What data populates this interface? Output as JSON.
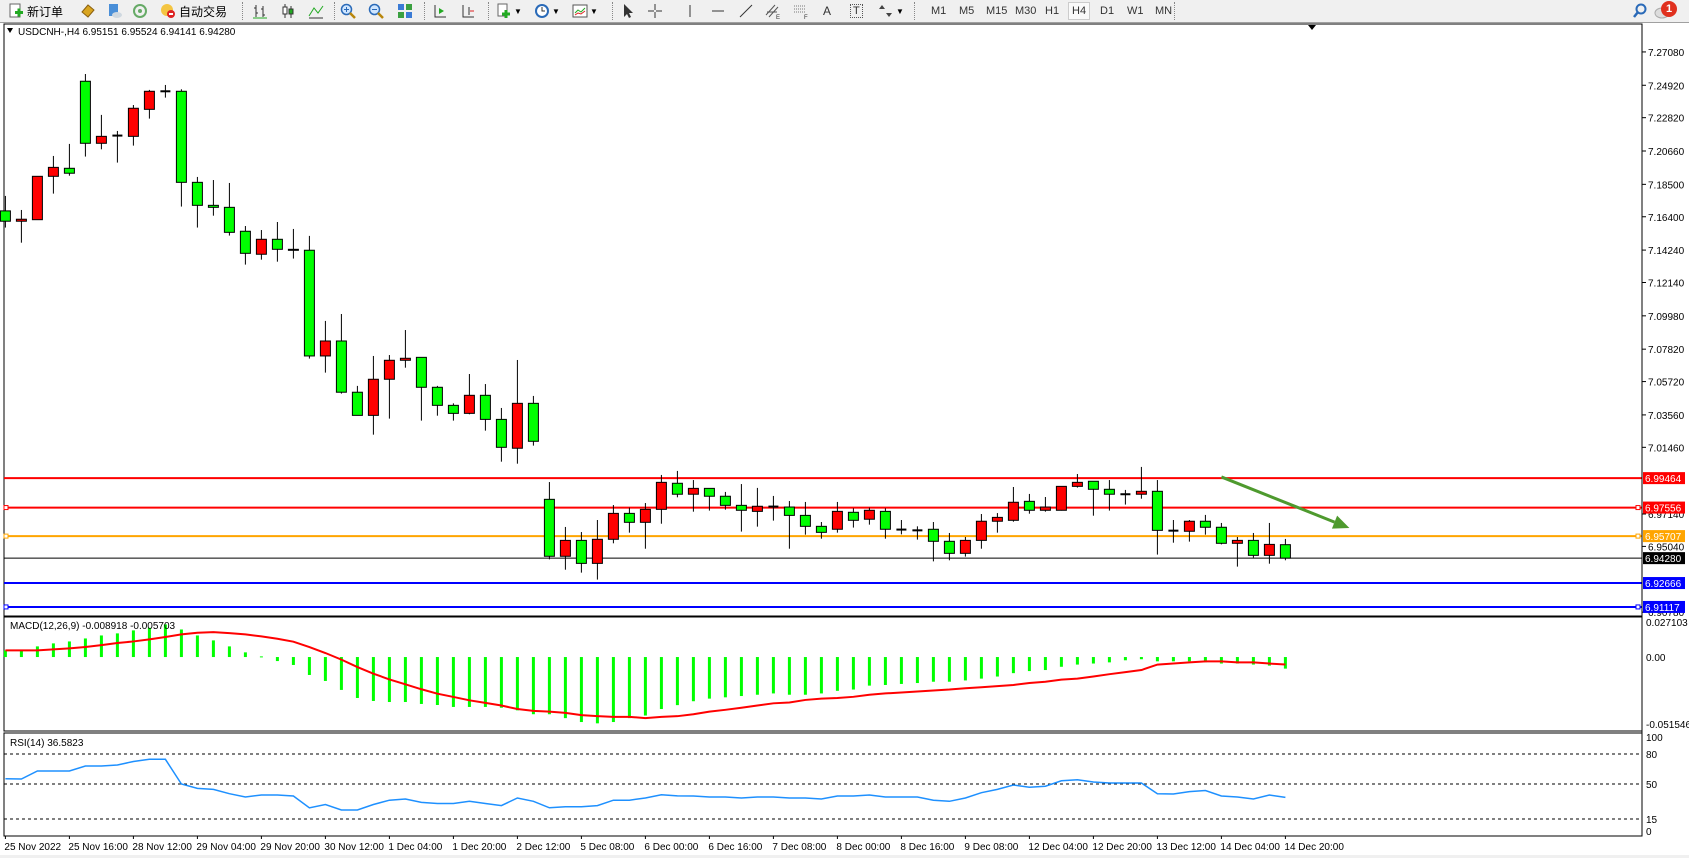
{
  "toolbar": {
    "new_order_label": "新订单",
    "auto_trading_label": "自动交易",
    "timeframes": [
      "M1",
      "M5",
      "M15",
      "M30",
      "H1",
      "H4",
      "D1",
      "W1",
      "MN"
    ],
    "selected_timeframe": "H4",
    "notification_count": "1",
    "text_tool_label": "A",
    "text_label_tool": "T"
  },
  "main_chart": {
    "header": "USDCNH-,H4  6.95151 6.95524 6.94141 6.94280",
    "symbol": "USDCNH-",
    "timeframe": "H4",
    "colors": {
      "bull_candle": "#ff0000",
      "bear_candle": "#00ff00",
      "doji": "#000000",
      "arrow": "#4e9a2e"
    },
    "ylim": [
      6.9053,
      7.2889
    ],
    "y_ticks": [
      "7.27080",
      "7.24920",
      "7.22820",
      "7.20660",
      "7.18500",
      "7.16400",
      "7.14240",
      "7.12140",
      "7.09980",
      "7.07820",
      "7.05720",
      "7.03560",
      "7.01460",
      "6.97140",
      "6.95040",
      "6.90780"
    ],
    "horizontal_lines": [
      {
        "price": "6.99464",
        "color": "#ff0000",
        "handle": false
      },
      {
        "price": "6.97556",
        "color": "#ff0000",
        "handle": true
      },
      {
        "price": "6.95707",
        "color": "#ffa500",
        "handle": true
      },
      {
        "price": "6.92666",
        "color": "#0000ff",
        "handle": false
      },
      {
        "price": "6.91117",
        "color": "#0000ff",
        "handle": true
      }
    ],
    "bid": {
      "price": "6.94280",
      "color": "#000000"
    },
    "arrow": {
      "from": {
        "time": "14 Dec 04:00",
        "price": 6.9954
      },
      "to": {
        "time": "15 Dec 12:00",
        "price": 6.9623
      }
    },
    "ohlc": [
      [
        7.1678,
        7.1775,
        7.157,
        7.1611
      ],
      [
        7.1611,
        7.1684,
        7.1472,
        7.1624
      ],
      [
        7.1621,
        7.1902,
        7.1621,
        7.1902
      ],
      [
        7.1902,
        7.2034,
        7.179,
        7.196
      ],
      [
        7.1954,
        7.2112,
        7.1906,
        7.1922
      ],
      [
        7.2518,
        7.2565,
        7.203,
        7.2116
      ],
      [
        7.2116,
        7.23,
        7.2077,
        7.2161
      ],
      [
        7.2166,
        7.2196,
        7.1991,
        7.2161
      ],
      [
        7.2161,
        7.2364,
        7.2101,
        7.2343
      ],
      [
        7.2336,
        7.2462,
        7.2276,
        7.2453
      ],
      [
        7.2453,
        7.2494,
        7.2412,
        7.2453
      ],
      [
        7.2453,
        7.2466,
        7.1706,
        7.1863
      ],
      [
        7.1863,
        7.1898,
        7.157,
        7.1714
      ],
      [
        7.1714,
        7.1878,
        7.1647,
        7.1701
      ],
      [
        7.1701,
        7.1859,
        7.1518,
        7.1539
      ],
      [
        7.1546,
        7.158,
        7.133,
        7.1403
      ],
      [
        7.1397,
        7.1554,
        7.1362,
        7.1494
      ],
      [
        7.1494,
        7.1606,
        7.1349,
        7.1429
      ],
      [
        7.1429,
        7.1561,
        7.1369,
        7.1423
      ],
      [
        7.1423,
        7.1516,
        7.0721,
        7.0738
      ],
      [
        7.0738,
        7.0965,
        7.063,
        7.0835
      ],
      [
        7.0835,
        7.101,
        7.0494,
        7.0503
      ],
      [
        7.0503,
        7.0544,
        7.0353,
        7.0353
      ],
      [
        7.0353,
        7.0738,
        7.0228,
        7.0587
      ],
      [
        7.0587,
        7.0744,
        7.0332,
        7.071
      ],
      [
        7.071,
        7.0906,
        7.0662,
        7.0723
      ],
      [
        7.0729,
        7.0729,
        7.0319,
        7.0535
      ],
      [
        7.0535,
        7.0544,
        7.0351,
        7.0418
      ],
      [
        7.0418,
        7.0431,
        7.0319,
        7.0366
      ],
      [
        7.0366,
        7.0621,
        7.036,
        7.0483
      ],
      [
        7.0483,
        7.0556,
        7.0254,
        7.0327
      ],
      [
        7.0327,
        7.0401,
        7.0053,
        7.0146
      ],
      [
        7.014,
        7.0712,
        7.004,
        7.0431
      ],
      [
        7.0431,
        7.0479,
        7.0157,
        7.0185
      ],
      [
        6.9809,
        6.9921,
        6.942,
        6.944
      ],
      [
        6.944,
        6.963,
        6.9353,
        6.9543
      ],
      [
        6.9543,
        6.9597,
        6.9334,
        6.9394
      ],
      [
        6.9394,
        6.9675,
        6.9289,
        6.955
      ],
      [
        6.955,
        6.9772,
        6.9524,
        6.9718
      ],
      [
        6.9718,
        6.9755,
        6.9593,
        6.966
      ],
      [
        6.966,
        6.9785,
        6.9489,
        6.9744
      ],
      [
        6.9744,
        6.9967,
        6.9651,
        6.9919
      ],
      [
        6.9913,
        6.9993,
        6.9822,
        6.9842
      ],
      [
        6.9842,
        6.9934,
        6.9729,
        6.988
      ],
      [
        6.988,
        6.988,
        6.9736,
        6.9829
      ],
      [
        6.9829,
        6.9857,
        6.9742,
        6.977
      ],
      [
        6.977,
        6.9908,
        6.96,
        6.9738
      ],
      [
        6.9731,
        6.9883,
        6.9632,
        6.9764
      ],
      [
        6.9762,
        6.9831,
        6.9671,
        6.9762
      ],
      [
        6.9759,
        6.9798,
        6.9489,
        6.9705
      ],
      [
        6.9705,
        6.9792,
        6.958,
        6.9634
      ],
      [
        6.9634,
        6.9662,
        6.9554,
        6.9595
      ],
      [
        6.9615,
        6.9792,
        6.9593,
        6.9731
      ],
      [
        6.9725,
        6.9751,
        6.9626,
        6.9673
      ],
      [
        6.968,
        6.9755,
        6.9645,
        6.9738
      ],
      [
        6.9731,
        6.9751,
        6.9554,
        6.9615
      ],
      [
        6.9613,
        6.9675,
        6.9582,
        6.9613
      ],
      [
        6.9608,
        6.9634,
        6.9548,
        6.9608
      ],
      [
        6.9615,
        6.9662,
        6.9407,
        6.9537
      ],
      [
        6.9537,
        6.9591,
        6.9414,
        6.9459
      ],
      [
        6.9459,
        6.9565,
        6.9438,
        6.9543
      ],
      [
        6.9543,
        6.9714,
        6.9489,
        6.9667
      ],
      [
        6.9667,
        6.972,
        6.9593,
        6.9692
      ],
      [
        6.9673,
        6.9889,
        6.9664,
        6.979
      ],
      [
        6.9796,
        6.9844,
        6.9716,
        6.9738
      ],
      [
        6.9738,
        6.9824,
        6.9729,
        6.9759
      ],
      [
        6.9738,
        6.9893,
        6.9736,
        6.9893
      ],
      [
        6.9893,
        6.9973,
        6.9885,
        6.9919
      ],
      [
        6.9926,
        6.9926,
        6.9703,
        6.9874
      ],
      [
        6.9874,
        6.9934,
        6.9736,
        6.9842
      ],
      [
        6.9842,
        6.987,
        6.9775,
        6.9842
      ],
      [
        6.9842,
        7.0019,
        6.9813,
        6.9861
      ],
      [
        6.9861,
        6.9934,
        6.9451,
        6.9608
      ],
      [
        6.9606,
        6.9675,
        6.9528,
        6.9606
      ],
      [
        6.9602,
        6.9675,
        6.9535,
        6.9667
      ],
      [
        6.9667,
        6.9708,
        6.958,
        6.9628
      ],
      [
        6.9628,
        6.9656,
        6.9517,
        6.9524
      ],
      [
        6.9524,
        6.9565,
        6.9373,
        6.9543
      ],
      [
        6.9543,
        6.9591,
        6.9431,
        6.9446
      ],
      [
        6.9446,
        6.9656,
        6.9392,
        6.9517
      ],
      [
        6.95151,
        6.95524,
        6.94141,
        6.9428
      ]
    ]
  },
  "macd": {
    "header": "MACD(12,26,9) -0.008918 -0.005703",
    "ylim": [
      -0.0569,
      0.0308
    ],
    "y_ticks": [
      "0.027103",
      "0.00",
      "-0.051546"
    ],
    "colors": {
      "histogram": "#00ff00",
      "signal": "#ff0000"
    },
    "histogram": [
      0.0051,
      0.0049,
      0.0082,
      0.0105,
      0.012,
      0.0143,
      0.0166,
      0.0182,
      0.0205,
      0.0225,
      0.0251,
      0.0212,
      0.0166,
      0.0128,
      0.0082,
      0.0036,
      0.0005,
      -0.0031,
      -0.0061,
      -0.0138,
      -0.0184,
      -0.0253,
      -0.0315,
      -0.0338,
      -0.0346,
      -0.0346,
      -0.0361,
      -0.0369,
      -0.0384,
      -0.0384,
      -0.0384,
      -0.039,
      -0.041,
      -0.044,
      -0.044,
      -0.047,
      -0.05,
      -0.051,
      -0.05,
      -0.047,
      -0.045,
      -0.04,
      -0.037,
      -0.034,
      -0.032,
      -0.031,
      -0.03,
      -0.029,
      -0.028,
      -0.029,
      -0.029,
      -0.028,
      -0.026,
      -0.025,
      -0.022,
      -0.0215,
      -0.0207,
      -0.02,
      -0.019,
      -0.019,
      -0.018,
      -0.0166,
      -0.015,
      -0.0124,
      -0.0108,
      -0.01,
      -0.0075,
      -0.0058,
      -0.005,
      -0.0041,
      -0.0025,
      -0.0017,
      -0.0033,
      -0.0033,
      -0.0033,
      -0.004,
      -0.005,
      -0.005,
      -0.0058,
      -0.0066,
      -0.008918
    ],
    "signal": [
      0.0051,
      0.0051,
      0.0051,
      0.0059,
      0.0067,
      0.0077,
      0.0092,
      0.0108,
      0.012,
      0.0136,
      0.0154,
      0.0174,
      0.0187,
      0.0192,
      0.0184,
      0.0174,
      0.0159,
      0.0141,
      0.0118,
      0.0077,
      0.0031,
      -0.002,
      -0.0077,
      -0.0128,
      -0.0172,
      -0.021,
      -0.0248,
      -0.0282,
      -0.0307,
      -0.0333,
      -0.0353,
      -0.0373,
      -0.04,
      -0.0414,
      -0.042,
      -0.043,
      -0.0447,
      -0.0455,
      -0.046,
      -0.046,
      -0.047,
      -0.046,
      -0.0455,
      -0.044,
      -0.042,
      -0.0406,
      -0.039,
      -0.0373,
      -0.0356,
      -0.035,
      -0.033,
      -0.032,
      -0.0315,
      -0.0306,
      -0.029,
      -0.028,
      -0.0273,
      -0.0265,
      -0.0257,
      -0.025,
      -0.024,
      -0.0232,
      -0.0224,
      -0.0215,
      -0.02,
      -0.019,
      -0.0174,
      -0.0166,
      -0.015,
      -0.0132,
      -0.0116,
      -0.01,
      -0.0058,
      -0.005,
      -0.0041,
      -0.0033,
      -0.0033,
      -0.0041,
      -0.0041,
      -0.005,
      -0.005703
    ]
  },
  "rsi": {
    "header": "RSI(14) 36.5823",
    "ylim": [
      -2,
      101
    ],
    "y_ticks": [
      "100",
      "80",
      "50",
      "15",
      "0"
    ],
    "levels": [
      80,
      50,
      15
    ],
    "color": "#1e90ff",
    "values": [
      55.3,
      55,
      63,
      63,
      63,
      68,
      68,
      69,
      72.5,
      74.7,
      74.7,
      50,
      45.6,
      44.6,
      40.3,
      37,
      39,
      39,
      38,
      26.2,
      29.5,
      24,
      24,
      29.5,
      33.8,
      35,
      31.6,
      30.5,
      30.5,
      32.7,
      30.5,
      28.4,
      36,
      32.7,
      26.2,
      27.3,
      27.3,
      28.4,
      33.8,
      33.8,
      36,
      39.2,
      38.1,
      38,
      37,
      37,
      36,
      37,
      37,
      36,
      36,
      35,
      38,
      38,
      39,
      37,
      37,
      37,
      33.8,
      32.7,
      36,
      41.3,
      44.6,
      49,
      46.7,
      47.8,
      53.2,
      54.3,
      52,
      51,
      51,
      51,
      40.3,
      40,
      42.4,
      43.5,
      38,
      37,
      35,
      39,
      36.58
    ]
  },
  "time_axis": {
    "labels": [
      "25 Nov 2022",
      "25 Nov 16:00",
      "28 Nov 12:00",
      "29 Nov 04:00",
      "29 Nov 20:00",
      "30 Nov 12:00",
      "1 Dec 04:00",
      "1 Dec 20:00",
      "2 Dec 12:00",
      "5 Dec 08:00",
      "6 Dec 00:00",
      "6 Dec 16:00",
      "7 Dec 08:00",
      "8 Dec 00:00",
      "8 Dec 16:00",
      "9 Dec 08:00",
      "12 Dec 04:00",
      "12 Dec 20:00",
      "13 Dec 12:00",
      "14 Dec 04:00",
      "14 Dec 20:00"
    ]
  }
}
